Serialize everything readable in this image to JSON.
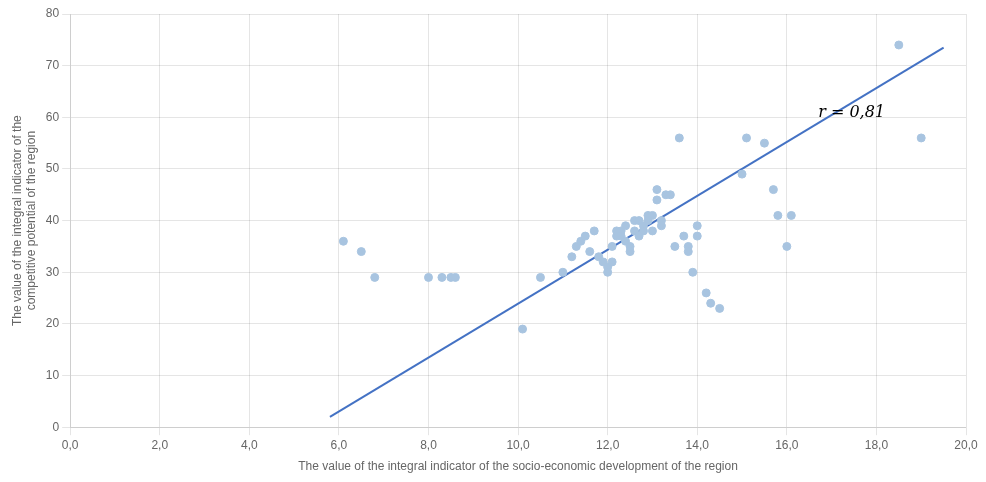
{
  "chart_data": {
    "type": "scatter",
    "series": [
      {
        "type": "scatter",
        "color": "#a8c4e0",
        "x": [
          6.1,
          6.5,
          6.8,
          8.0,
          8.3,
          8.5,
          8.6,
          10.1,
          10.5,
          11.0,
          11.2,
          11.3,
          11.4,
          11.5,
          11.6,
          11.7,
          11.8,
          11.9,
          12.0,
          12.0,
          12.1,
          12.1,
          12.2,
          12.2,
          12.3,
          12.3,
          12.4,
          12.4,
          12.5,
          12.5,
          12.6,
          12.6,
          12.7,
          12.7,
          12.8,
          12.8,
          12.9,
          12.9,
          13.0,
          13.0,
          13.1,
          13.1,
          13.2,
          13.2,
          13.3,
          13.4,
          13.5,
          13.6,
          13.7,
          13.8,
          13.8,
          13.9,
          14.0,
          14.0,
          14.2,
          14.3,
          14.5,
          15.0,
          15.1,
          15.5,
          15.7,
          15.8,
          16.0,
          16.1,
          18.5,
          19.0
        ],
        "values": [
          36,
          34,
          29,
          29,
          29,
          29,
          29,
          19,
          29,
          30,
          33,
          35,
          36,
          37,
          34,
          38,
          33,
          32,
          31,
          30,
          32,
          35,
          37,
          38,
          38,
          37,
          36,
          39,
          35,
          34,
          40,
          38,
          40,
          37,
          39,
          38,
          40,
          41,
          41,
          38,
          44,
          46,
          39,
          40,
          45,
          45,
          35,
          56,
          37,
          35,
          34,
          30,
          37,
          39,
          26,
          24,
          23,
          49,
          56,
          55,
          46,
          41,
          35,
          41,
          74,
          56
        ]
      },
      {
        "type": "line",
        "color": "#4472c4",
        "x": [
          5.8,
          19.5
        ],
        "values": [
          2.0,
          73.5
        ]
      }
    ],
    "xlabel": "The value of the integral indicator of the socio-economic development of the region",
    "ylabel": "The value of the integral indicator of the\ncompetitive potential of the region",
    "xlim": [
      0,
      20
    ],
    "ylim": [
      0,
      80
    ],
    "xticks": [
      {
        "value": 0,
        "label": "0,0"
      },
      {
        "value": 2,
        "label": "2,0"
      },
      {
        "value": 4,
        "label": "4,0"
      },
      {
        "value": 6,
        "label": "6,0"
      },
      {
        "value": 8,
        "label": "8,0"
      },
      {
        "value": 10,
        "label": "10,0"
      },
      {
        "value": 12,
        "label": "12,0"
      },
      {
        "value": 14,
        "label": "14,0"
      },
      {
        "value": 16,
        "label": "16,0"
      },
      {
        "value": 18,
        "label": "18,0"
      },
      {
        "value": 20,
        "label": "20,0"
      }
    ],
    "yticks": [
      0,
      10,
      20,
      30,
      40,
      50,
      60,
      70,
      80
    ],
    "annotations": [
      {
        "text": "r = 0,81",
        "x": 16.7,
        "y": 60
      }
    ],
    "grid": true
  }
}
